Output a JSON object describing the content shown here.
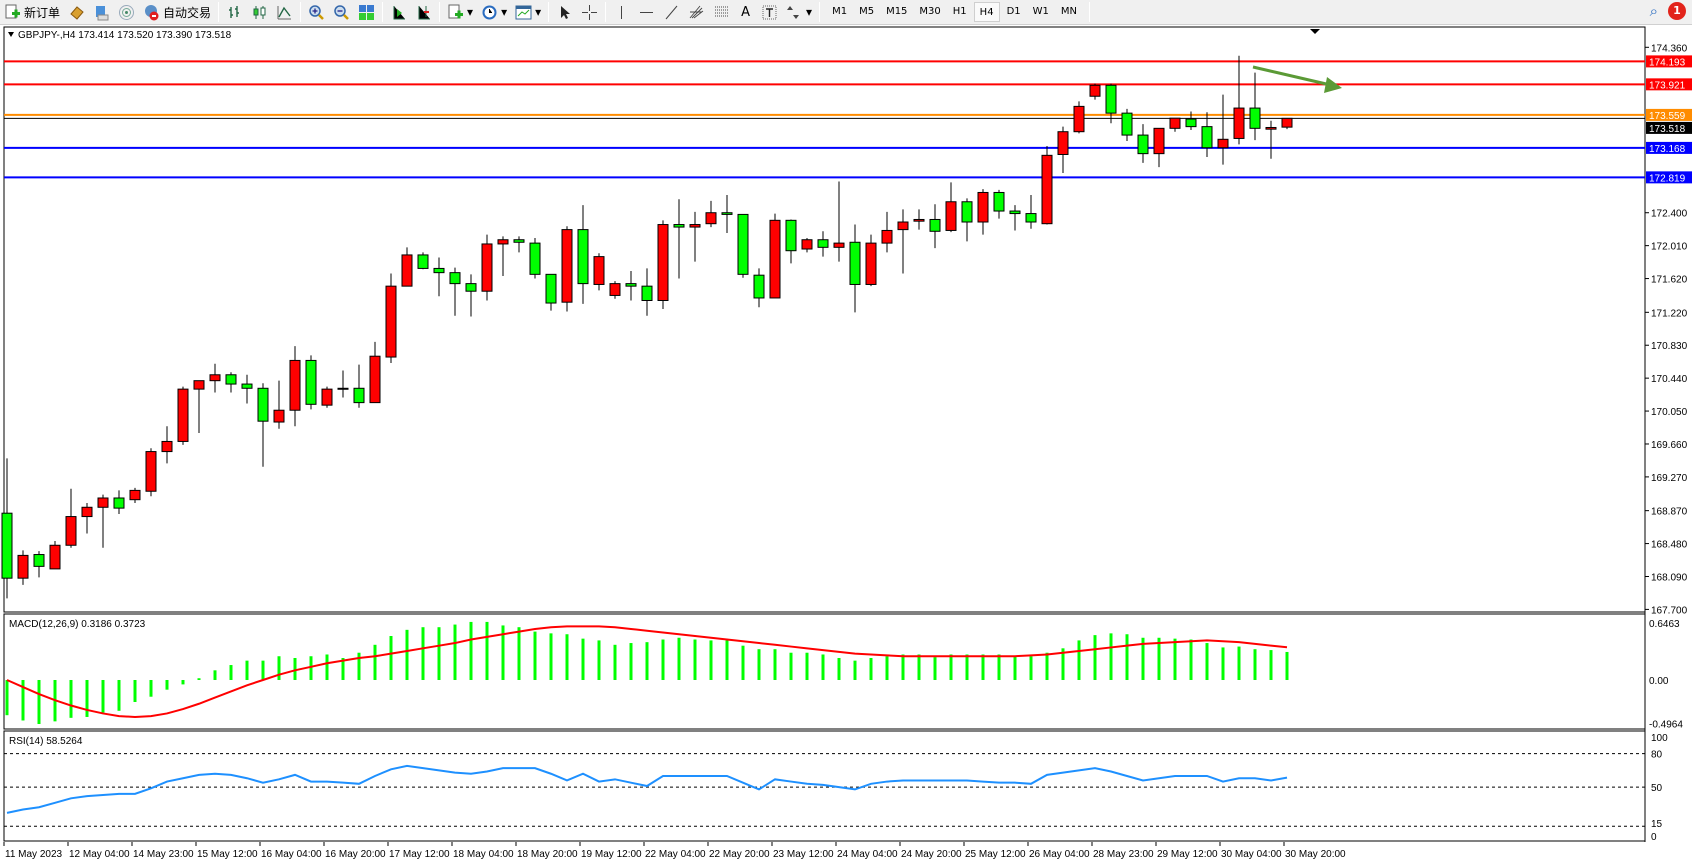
{
  "toolbar": {
    "new_order": "新订单",
    "auto_trading": "自动交易",
    "icons": [
      "new-order-icon",
      "market-watch-icon",
      "navigator-icon",
      "signals-icon",
      "auto-trading-icon",
      "bar-chart-icon",
      "candlestick-icon",
      "line-chart-icon",
      "zoom-in-icon",
      "zoom-out-icon",
      "tile-windows-icon",
      "chart-shift-icon",
      "autoscroll-icon",
      "indicators-icon",
      "periods-icon",
      "templates-icon",
      "cursor-icon",
      "crosshair-icon",
      "vertical-line-icon",
      "horizontal-line-icon",
      "trendline-icon",
      "fibonacci-fan-icon",
      "fibonacci-icon",
      "text-icon",
      "text-label-icon",
      "arrows-icon"
    ],
    "text_tool_label": "A",
    "timeframes": [
      "M1",
      "M5",
      "M15",
      "M30",
      "H1",
      "H4",
      "D1",
      "W1",
      "MN"
    ],
    "active_timeframe": "H4",
    "notification_count": "1"
  },
  "chart": {
    "header": "GBPJPY-,H4  173.414 173.520 173.390 173.518",
    "colors": {
      "bull": "#ff0000",
      "bear": "#00ff00",
      "macd_hist": "#00ff00",
      "signal": "#ff0000",
      "rsi": "#1e90ff"
    },
    "price_ticks": [
      "174.360",
      "172.400",
      "172.010",
      "171.620",
      "171.220",
      "170.830",
      "170.440",
      "170.050",
      "169.660",
      "169.270",
      "168.870",
      "168.480",
      "168.090",
      "167.700"
    ],
    "hlines": [
      {
        "price": "174.193",
        "color": "#ff0000"
      },
      {
        "price": "173.921",
        "color": "#ff0000"
      },
      {
        "price": "173.559",
        "color": "#ff8c00"
      },
      {
        "price": "173.518",
        "color": "#000000"
      },
      {
        "price": "173.168",
        "color": "#0000ff"
      },
      {
        "price": "172.819",
        "color": "#0000ff"
      }
    ],
    "arrow": {
      "color": "#5b9a36",
      "direction": "down-right"
    },
    "time_labels": [
      "11 May 2023",
      "12 May 04:00",
      "14 May 23:00",
      "15 May 12:00",
      "16 May 04:00",
      "16 May 20:00",
      "17 May 12:00",
      "18 May 04:00",
      "18 May 20:00",
      "19 May 12:00",
      "22 May 04:00",
      "22 May 20:00",
      "23 May 12:00",
      "24 May 04:00",
      "24 May 20:00",
      "25 May 12:00",
      "26 May 04:00",
      "28 May 23:00",
      "29 May 12:00",
      "30 May 04:00",
      "30 May 20:00"
    ],
    "ohlc": [
      [
        168.84,
        169.49,
        167.83,
        168.07
      ],
      [
        168.07,
        168.4,
        167.99,
        168.34
      ],
      [
        168.35,
        168.39,
        168.08,
        168.21
      ],
      [
        168.18,
        168.51,
        168.18,
        168.46
      ],
      [
        168.46,
        169.13,
        168.43,
        168.8
      ],
      [
        168.8,
        168.96,
        168.6,
        168.91
      ],
      [
        168.91,
        169.06,
        168.43,
        169.02
      ],
      [
        169.02,
        169.11,
        168.83,
        168.9
      ],
      [
        169.0,
        169.14,
        168.96,
        169.11
      ],
      [
        169.1,
        169.61,
        169.04,
        169.57
      ],
      [
        169.57,
        169.87,
        169.43,
        169.69
      ],
      [
        169.69,
        170.34,
        169.65,
        170.31
      ],
      [
        170.31,
        170.41,
        169.79,
        170.41
      ],
      [
        170.41,
        170.61,
        170.27,
        170.48
      ],
      [
        170.48,
        170.51,
        170.27,
        170.37
      ],
      [
        170.37,
        170.48,
        170.14,
        170.32
      ],
      [
        170.32,
        170.38,
        169.39,
        169.93
      ],
      [
        169.92,
        170.41,
        169.84,
        170.06
      ],
      [
        170.06,
        170.82,
        169.87,
        170.65
      ],
      [
        170.65,
        170.71,
        170.07,
        170.13
      ],
      [
        170.12,
        170.34,
        170.09,
        170.31
      ],
      [
        170.32,
        170.53,
        170.21,
        170.32
      ],
      [
        170.32,
        170.6,
        170.09,
        170.15
      ],
      [
        170.15,
        170.87,
        170.15,
        170.7
      ],
      [
        170.69,
        171.68,
        170.62,
        171.53
      ],
      [
        171.53,
        171.99,
        171.53,
        171.9
      ],
      [
        171.9,
        171.93,
        171.73,
        171.74
      ],
      [
        171.74,
        171.87,
        171.41,
        171.69
      ],
      [
        171.69,
        171.75,
        171.18,
        171.56
      ],
      [
        171.56,
        171.67,
        171.17,
        171.47
      ],
      [
        171.47,
        172.14,
        171.36,
        172.03
      ],
      [
        172.03,
        172.12,
        171.65,
        172.08
      ],
      [
        172.08,
        172.12,
        171.93,
        172.05
      ],
      [
        172.04,
        172.1,
        171.62,
        171.67
      ],
      [
        171.67,
        171.67,
        171.24,
        171.33
      ],
      [
        171.34,
        172.24,
        171.23,
        172.2
      ],
      [
        172.2,
        172.49,
        171.32,
        171.56
      ],
      [
        171.55,
        171.92,
        171.48,
        171.88
      ],
      [
        171.42,
        171.59,
        171.38,
        171.56
      ],
      [
        171.56,
        171.71,
        171.36,
        171.53
      ],
      [
        171.53,
        171.74,
        171.18,
        171.36
      ],
      [
        171.36,
        172.31,
        171.26,
        172.26
      ],
      [
        172.26,
        172.56,
        171.62,
        172.23
      ],
      [
        172.23,
        172.41,
        171.82,
        172.26
      ],
      [
        172.27,
        172.54,
        172.23,
        172.4
      ],
      [
        172.4,
        172.61,
        172.16,
        172.38
      ],
      [
        172.38,
        172.38,
        171.63,
        171.67
      ],
      [
        171.66,
        171.74,
        171.28,
        171.39
      ],
      [
        171.39,
        172.39,
        171.39,
        172.31
      ],
      [
        172.31,
        172.32,
        171.8,
        171.95
      ],
      [
        171.97,
        172.1,
        171.93,
        172.08
      ],
      [
        172.08,
        172.18,
        171.88,
        171.99
      ],
      [
        171.99,
        172.77,
        171.82,
        172.04
      ],
      [
        172.05,
        172.26,
        171.22,
        171.55
      ],
      [
        171.55,
        172.14,
        171.53,
        172.04
      ],
      [
        172.04,
        172.41,
        171.93,
        172.19
      ],
      [
        172.2,
        172.44,
        171.68,
        172.29
      ],
      [
        172.3,
        172.44,
        172.2,
        172.32
      ],
      [
        172.32,
        172.5,
        171.98,
        172.18
      ],
      [
        172.19,
        172.76,
        172.17,
        172.53
      ],
      [
        172.53,
        172.57,
        172.06,
        172.29
      ],
      [
        172.29,
        172.68,
        172.14,
        172.64
      ],
      [
        172.64,
        172.67,
        172.33,
        172.42
      ],
      [
        172.42,
        172.49,
        172.19,
        172.39
      ],
      [
        172.39,
        172.61,
        172.21,
        172.29
      ],
      [
        172.27,
        173.19,
        172.26,
        173.08
      ],
      [
        173.09,
        173.42,
        172.87,
        173.36
      ],
      [
        173.36,
        173.72,
        173.34,
        173.66
      ],
      [
        173.78,
        173.93,
        173.74,
        173.91
      ],
      [
        173.91,
        173.93,
        173.46,
        173.58
      ],
      [
        173.58,
        173.63,
        173.25,
        173.32
      ],
      [
        173.32,
        173.45,
        172.99,
        173.1
      ],
      [
        173.1,
        173.4,
        172.94,
        173.4
      ],
      [
        173.4,
        173.52,
        173.36,
        173.52
      ],
      [
        173.51,
        173.6,
        173.38,
        173.42
      ],
      [
        173.42,
        173.59,
        173.06,
        173.17
      ],
      [
        173.17,
        173.8,
        172.97,
        173.27
      ],
      [
        173.28,
        174.26,
        173.21,
        173.64
      ],
      [
        173.64,
        174.06,
        173.26,
        173.4
      ],
      [
        173.39,
        173.49,
        173.04,
        173.41
      ],
      [
        173.414,
        173.52,
        173.39,
        173.518
      ]
    ],
    "macd": {
      "label": "MACD(12,26,9) 0.3186 0.3723",
      "ticks": [
        "0.6463",
        "0.00",
        "-0.4964"
      ],
      "hist": [
        -0.4,
        -0.46,
        -0.5,
        -0.47,
        -0.43,
        -0.42,
        -0.37,
        -0.35,
        -0.25,
        -0.19,
        -0.11,
        -0.05,
        0.02,
        0.11,
        0.17,
        0.22,
        0.22,
        0.27,
        0.25,
        0.27,
        0.29,
        0.25,
        0.31,
        0.4,
        0.5,
        0.57,
        0.6,
        0.6,
        0.63,
        0.66,
        0.66,
        0.62,
        0.6,
        0.55,
        0.53,
        0.52,
        0.47,
        0.45,
        0.4,
        0.42,
        0.43,
        0.46,
        0.48,
        0.46,
        0.45,
        0.45,
        0.39,
        0.35,
        0.35,
        0.31,
        0.31,
        0.29,
        0.25,
        0.22,
        0.25,
        0.27,
        0.29,
        0.29,
        0.26,
        0.29,
        0.29,
        0.29,
        0.29,
        0.27,
        0.27,
        0.31,
        0.36,
        0.45,
        0.51,
        0.53,
        0.52,
        0.48,
        0.48,
        0.47,
        0.46,
        0.42,
        0.37,
        0.38,
        0.35,
        0.34,
        0.3186
      ],
      "signal": [
        0.0,
        -0.08,
        -0.16,
        -0.23,
        -0.29,
        -0.34,
        -0.38,
        -0.41,
        -0.42,
        -0.41,
        -0.38,
        -0.33,
        -0.27,
        -0.2,
        -0.13,
        -0.06,
        0.0,
        0.06,
        0.11,
        0.15,
        0.19,
        0.22,
        0.25,
        0.27,
        0.3,
        0.33,
        0.36,
        0.39,
        0.42,
        0.46,
        0.49,
        0.52,
        0.55,
        0.58,
        0.6,
        0.61,
        0.61,
        0.61,
        0.6,
        0.58,
        0.56,
        0.54,
        0.52,
        0.5,
        0.48,
        0.46,
        0.44,
        0.42,
        0.4,
        0.38,
        0.36,
        0.34,
        0.32,
        0.3,
        0.29,
        0.28,
        0.27,
        0.27,
        0.27,
        0.27,
        0.27,
        0.27,
        0.27,
        0.27,
        0.28,
        0.29,
        0.31,
        0.33,
        0.35,
        0.37,
        0.39,
        0.41,
        0.42,
        0.43,
        0.44,
        0.45,
        0.44,
        0.43,
        0.41,
        0.39,
        0.3723
      ]
    },
    "rsi": {
      "label": "RSI(14) 58.5264",
      "ticks": [
        "100",
        "80",
        "50",
        "15",
        "0"
      ],
      "values": [
        27,
        30,
        32,
        36,
        40,
        42,
        43,
        44,
        44,
        49,
        55,
        58,
        61,
        62,
        61,
        58,
        54,
        57,
        61,
        55,
        55,
        54,
        53,
        60,
        66,
        69,
        67,
        65,
        63,
        62,
        64,
        67,
        67,
        67,
        62,
        56,
        62,
        55,
        57,
        54,
        51,
        60,
        60,
        60,
        60,
        60,
        54,
        48,
        57,
        55,
        53,
        52,
        50,
        48,
        53,
        55,
        56,
        56,
        56,
        56,
        56,
        55,
        54,
        54,
        53,
        61,
        63,
        65,
        67,
        64,
        60,
        56,
        58,
        60,
        60,
        60,
        55,
        58,
        58,
        56,
        58.5264
      ]
    }
  }
}
